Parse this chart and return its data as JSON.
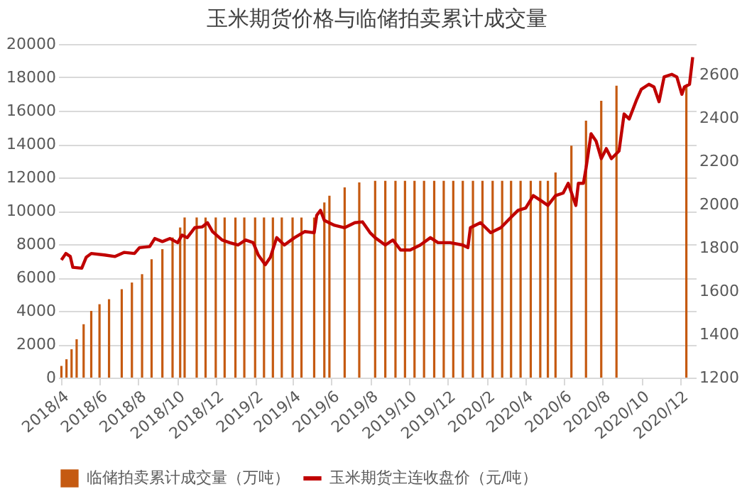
{
  "chart_data": {
    "type": "bar",
    "title": "玉米期货价格与临储拍卖累计成交量",
    "xlim": [
      "2018-03-28",
      "2020-12-26"
    ],
    "xticks": [
      {
        "value": "2018-04-01",
        "label": "2018/4"
      },
      {
        "value": "2018-06-01",
        "label": "2018/6"
      },
      {
        "value": "2018-08-01",
        "label": "2018/8"
      },
      {
        "value": "2018-10-01",
        "label": "2018/10"
      },
      {
        "value": "2018-12-01",
        "label": "2018/12"
      },
      {
        "value": "2019-02-01",
        "label": "2019/2"
      },
      {
        "value": "2019-04-01",
        "label": "2019/4"
      },
      {
        "value": "2019-06-01",
        "label": "2019/6"
      },
      {
        "value": "2019-08-01",
        "label": "2019/8"
      },
      {
        "value": "2019-10-01",
        "label": "2019/10"
      },
      {
        "value": "2019-12-01",
        "label": "2019/12"
      },
      {
        "value": "2020-02-01",
        "label": "2020/2"
      },
      {
        "value": "2020-04-01",
        "label": "2020/4"
      },
      {
        "value": "2020-06-01",
        "label": "2020/6"
      },
      {
        "value": "2020-08-01",
        "label": "2020/8"
      },
      {
        "value": "2020-10-01",
        "label": "2020/10"
      },
      {
        "value": "2020-12-01",
        "label": "2020/12"
      }
    ],
    "ylim": [
      0,
      20000
    ],
    "yticks": [
      0,
      2000,
      4000,
      6000,
      8000,
      10000,
      12000,
      14000,
      16000,
      18000,
      20000
    ],
    "y2lim": [
      1200,
      2740
    ],
    "y2ticks": [
      1200,
      1400,
      1600,
      1800,
      2000,
      2200,
      2400,
      2600
    ],
    "grid": "y",
    "legend": "bottom",
    "series": [
      {
        "name": "临储拍卖累计成交量（万吨）",
        "color": "#c55a11",
        "x": [
          "2018-04-02",
          "2018-04-10",
          "2018-04-18",
          "2018-04-26",
          "2018-05-07",
          "2018-05-19",
          "2018-06-01",
          "2018-06-16",
          "2018-07-06",
          "2018-07-22",
          "2018-08-07",
          "2018-08-22",
          "2018-09-08",
          "2018-09-24",
          "2018-10-06",
          "2018-10-13",
          "2018-11-01",
          "2018-11-15",
          "2018-12-01",
          "2018-12-15",
          "2019-01-01",
          "2019-01-15",
          "2019-02-01",
          "2019-02-15",
          "2019-03-01",
          "2019-03-15",
          "2019-04-01",
          "2019-04-15",
          "2019-05-05",
          "2019-05-21",
          "2019-05-29",
          "2019-06-22",
          "2019-07-15",
          "2019-08-09",
          "2019-08-25",
          "2019-09-10",
          "2019-09-25",
          "2019-10-10",
          "2019-10-25",
          "2019-11-10",
          "2019-11-25",
          "2019-12-10",
          "2019-12-25",
          "2020-01-10",
          "2020-01-25",
          "2020-02-10",
          "2020-02-25",
          "2020-03-10",
          "2020-03-25",
          "2020-04-10",
          "2020-04-25",
          "2020-05-07",
          "2020-05-19",
          "2020-06-13",
          "2020-07-06",
          "2020-07-30",
          "2020-08-23",
          "2020-12-11"
        ],
        "values": [
          700,
          1100,
          1700,
          2300,
          3200,
          4000,
          4400,
          4700,
          5300,
          5700,
          6200,
          7100,
          7700,
          8400,
          9000,
          9600,
          9600,
          9600,
          9600,
          9600,
          9600,
          9600,
          9600,
          9600,
          9600,
          9600,
          9600,
          9600,
          9600,
          10500,
          10900,
          11400,
          11700,
          11800,
          11800,
          11800,
          11800,
          11800,
          11800,
          11800,
          11800,
          11800,
          11800,
          11800,
          11800,
          11800,
          11800,
          11800,
          11800,
          11800,
          11800,
          11800,
          12300,
          13900,
          15400,
          16600,
          17500,
          17500
        ]
      },
      {
        "name": "玉米期货主连收盘价（元/吨）",
        "type": "line",
        "axis": "y2",
        "color": "#c00000",
        "x": [
          "2018-04-02",
          "2018-04-09",
          "2018-04-16",
          "2018-04-20",
          "2018-05-04",
          "2018-05-11",
          "2018-05-19",
          "2018-06-09",
          "2018-06-25",
          "2018-07-10",
          "2018-07-26",
          "2018-08-03",
          "2018-08-19",
          "2018-08-27",
          "2018-09-08",
          "2018-09-20",
          "2018-10-02",
          "2018-10-09",
          "2018-10-17",
          "2018-10-29",
          "2018-11-10",
          "2018-11-18",
          "2018-11-26",
          "2018-12-11",
          "2018-12-23",
          "2019-01-05",
          "2019-01-17",
          "2019-01-29",
          "2019-02-06",
          "2019-02-17",
          "2019-02-25",
          "2019-03-07",
          "2019-03-19",
          "2019-04-04",
          "2019-04-20",
          "2019-05-05",
          "2019-05-09",
          "2019-05-15",
          "2019-05-21",
          "2019-06-06",
          "2019-06-22",
          "2019-07-08",
          "2019-07-20",
          "2019-08-01",
          "2019-08-09",
          "2019-08-25",
          "2019-09-06",
          "2019-09-18",
          "2019-10-03",
          "2019-10-19",
          "2019-11-04",
          "2019-11-16",
          "2019-12-05",
          "2019-12-25",
          "2020-01-02",
          "2020-01-06",
          "2020-01-22",
          "2020-02-07",
          "2020-02-23",
          "2020-03-09",
          "2020-03-21",
          "2020-04-02",
          "2020-04-14",
          "2020-04-26",
          "2020-05-07",
          "2020-05-19",
          "2020-05-31",
          "2020-06-08",
          "2020-06-20",
          "2020-06-24",
          "2020-07-02",
          "2020-07-06",
          "2020-07-14",
          "2020-07-22",
          "2020-07-30",
          "2020-08-07",
          "2020-08-15",
          "2020-08-27",
          "2020-09-04",
          "2020-09-12",
          "2020-09-24",
          "2020-10-01",
          "2020-10-13",
          "2020-10-21",
          "2020-10-29",
          "2020-11-06",
          "2020-11-18",
          "2020-11-26",
          "2020-12-04",
          "2020-12-08",
          "2020-12-16",
          "2020-12-21"
        ],
        "values": [
          1743,
          1773,
          1759,
          1709,
          1705,
          1755,
          1773,
          1766,
          1759,
          1778,
          1773,
          1800,
          1805,
          1842,
          1828,
          1842,
          1823,
          1858,
          1846,
          1892,
          1896,
          1915,
          1874,
          1835,
          1823,
          1812,
          1835,
          1823,
          1766,
          1721,
          1755,
          1846,
          1812,
          1846,
          1874,
          1869,
          1949,
          1972,
          1926,
          1903,
          1892,
          1915,
          1919,
          1869,
          1846,
          1812,
          1835,
          1789,
          1789,
          1812,
          1846,
          1823,
          1823,
          1812,
          1800,
          1892,
          1915,
          1869,
          1892,
          1937,
          1972,
          1983,
          2040,
          2017,
          1995,
          2040,
          2052,
          2097,
          1995,
          2097,
          2097,
          2166,
          2326,
          2291,
          2211,
          2257,
          2211,
          2246,
          2417,
          2394,
          2485,
          2531,
          2554,
          2542,
          2474,
          2588,
          2600,
          2588,
          2508,
          2542,
          2554,
          2679
        ]
      }
    ]
  }
}
